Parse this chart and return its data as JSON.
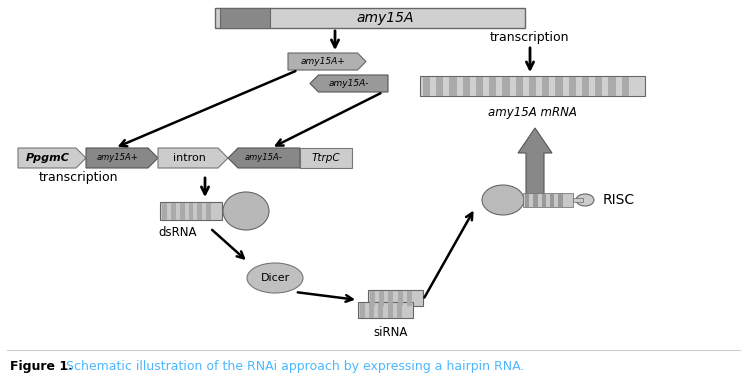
{
  "title": "amy15A",
  "figure_caption_bold": "Figure 1.",
  "figure_caption_normal": " Schematic illustration of the RNAi approach by expressing a hairpin RNA.",
  "figure_caption_color": "#4db8ff",
  "bg_color": "#ffffff",
  "gray_light": "#c8c8c8",
  "gray_mid": "#999999",
  "gray_dark": "#777777",
  "gray_darker": "#555555",
  "gray_box": "#b0b0b0",
  "stripe_color": "#aaaaaa",
  "text_color": "#000000"
}
